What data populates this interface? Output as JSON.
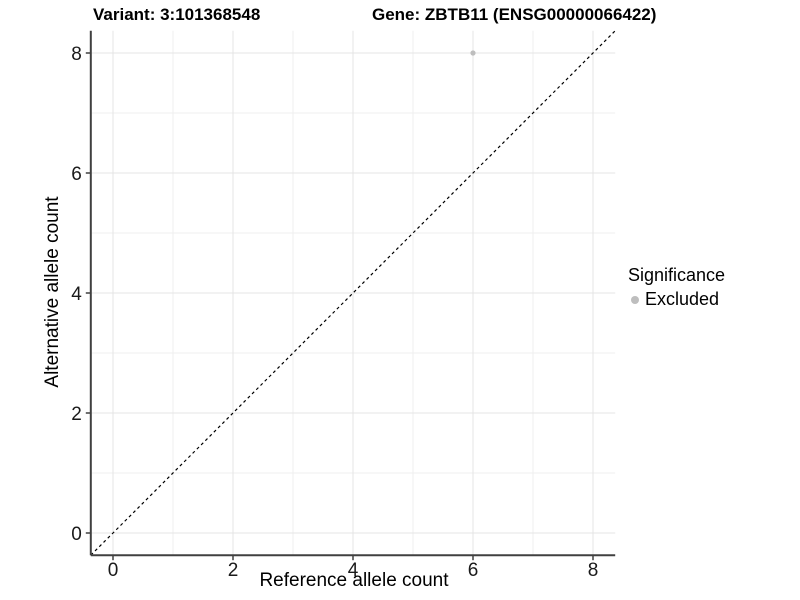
{
  "chart_data": {
    "type": "scatter",
    "title_variant": "Variant: 3:101368548",
    "title_gene": "Gene: ZBTB11 (ENSG00000066422)",
    "xlabel": "Reference allele count",
    "ylabel": "Alternative allele count",
    "xlim": [
      -0.37,
      8.37
    ],
    "ylim": [
      -0.37,
      8.37
    ],
    "x_major_ticks": [
      0,
      2,
      4,
      6,
      8
    ],
    "y_major_ticks": [
      0,
      2,
      4,
      6,
      8
    ],
    "x_minor_ticks": [
      1,
      3,
      5,
      7
    ],
    "y_minor_ticks": [
      1,
      3,
      5,
      7
    ],
    "grid": true,
    "points": [
      {
        "x": 6,
        "y": 8,
        "series": "Excluded"
      }
    ],
    "identity_line": {
      "style": "dashed",
      "slope": 1,
      "intercept": 0
    },
    "legend": {
      "title": "Significance",
      "position": "right",
      "items": [
        {
          "label": "Excluded",
          "color": "#bebebe"
        }
      ]
    },
    "colors": {
      "point": "#bebebe",
      "grid_major": "#e4e4e4",
      "grid_minor": "#efefef",
      "axis": "#404040",
      "tick_label": "#1a1a1a",
      "dash_line": "#000000",
      "background": "#ffffff"
    }
  }
}
